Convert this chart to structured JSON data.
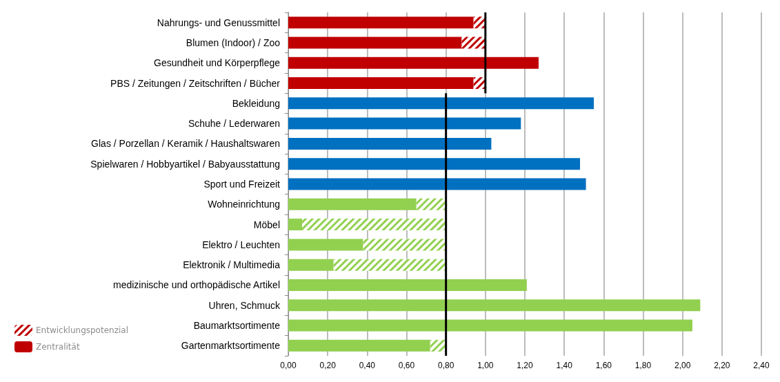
{
  "chart_data": {
    "type": "bar",
    "orientation": "horizontal",
    "stacked": true,
    "categories": [
      "Nahrungs- und Genussmittel",
      "Blumen (Indoor) / Zoo",
      "Gesundheit und Körperpflege",
      "PBS / Zeitungen / Zeitschriften / Bücher",
      "Bekleidung",
      "Schuhe / Lederwaren",
      "Glas / Porzellan / Keramik / Haushaltswaren",
      "Spielwaren / Hobbyartikel / Babyausstattung",
      "Sport und Freizeit",
      "Wohneinrichtung",
      "Möbel",
      "Elektro / Leuchten",
      "Elektronik / Multimedia",
      "medizinische und orthopädische Artikel",
      "Uhren, Schmuck",
      "Baumarktsortimente",
      "Gartenmarktsortimente"
    ],
    "series": [
      {
        "name": "Zentralität",
        "color": "#c00000",
        "values": [
          0.94,
          0.88,
          1.27,
          0.94,
          1.55,
          1.18,
          1.03,
          1.48,
          1.51,
          0.65,
          0.07,
          0.38,
          0.23,
          1.21,
          2.09,
          2.05,
          0.72
        ],
        "colors": [
          "#c00000",
          "#c00000",
          "#c00000",
          "#c00000",
          "#0070c0",
          "#0070c0",
          "#0070c0",
          "#0070c0",
          "#0070c0",
          "#92d050",
          "#92d050",
          "#92d050",
          "#92d050",
          "#92d050",
          "#92d050",
          "#92d050",
          "#92d050"
        ]
      },
      {
        "name": "Entwicklungspotenzial",
        "color": "#c00000",
        "values": [
          0.06,
          0.12,
          null,
          0.06,
          null,
          null,
          null,
          null,
          null,
          0.15,
          0.73,
          0.42,
          0.57,
          null,
          null,
          null,
          0.08
        ],
        "colors": [
          "#c00000",
          "#c00000",
          "#c00000",
          "#c00000",
          "#0070c0",
          "#0070c0",
          "#0070c0",
          "#0070c0",
          "#0070c0",
          "#92d050",
          "#92d050",
          "#92d050",
          "#92d050",
          "#92d050",
          "#92d050",
          "#92d050",
          "#92d050"
        ]
      }
    ],
    "ref_lines": [
      {
        "axis": "x",
        "value": 1.0,
        "color": "#000000"
      },
      {
        "axis": "x",
        "value": 0.8,
        "color": "#000000"
      }
    ],
    "xlim": [
      0,
      2.4
    ],
    "xticks": [
      {
        "value": 0,
        "label": "0,00"
      },
      {
        "value": 0.2,
        "label": "0,20"
      },
      {
        "value": 0.4,
        "label": "0,40"
      },
      {
        "value": 0.6,
        "label": "0,60"
      },
      {
        "value": 0.8,
        "label": "0,80"
      },
      {
        "value": 1.0,
        "label": "1,00"
      },
      {
        "value": 1.2,
        "label": "1,20"
      },
      {
        "value": 1.4,
        "label": "1,40"
      },
      {
        "value": 1.6,
        "label": "1,60"
      },
      {
        "value": 1.8,
        "label": "1,80"
      },
      {
        "value": 2.0,
        "label": "2,00"
      },
      {
        "value": 2.2,
        "label": "2,20"
      },
      {
        "value": 2.4,
        "label": "2,40"
      }
    ],
    "grid": "x",
    "legend": "bottom left"
  }
}
